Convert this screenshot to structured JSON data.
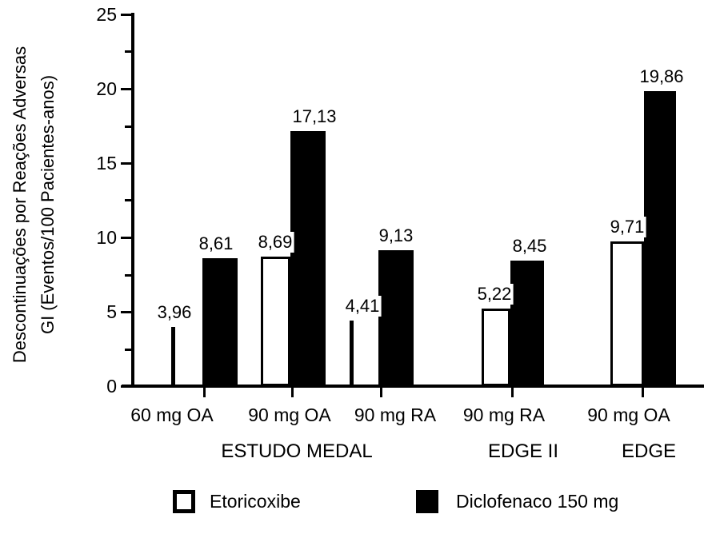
{
  "chart_data": {
    "type": "bar",
    "title": "",
    "ylabel_line1": "Descontinuações por Reações Adversas",
    "ylabel_line2": "GI (Eventos/100 Pacientes-anos)",
    "ylim": [
      0,
      25
    ],
    "yticks": [
      0,
      5,
      10,
      15,
      20,
      25
    ],
    "ytick_labels": [
      "0",
      "5",
      "10",
      "15",
      "20",
      "25"
    ],
    "minor_yticks": [
      2.5,
      7.5,
      12.5,
      17.5,
      22.5
    ],
    "grid": "off",
    "legend_position": "bottom",
    "categories": [
      "60 mg OA",
      "90 mg OA",
      "90 mg RA",
      "90 mg RA",
      "90 mg OA"
    ],
    "series": [
      {
        "name": "Etoricoxibe",
        "color": "#ffffff",
        "values": [
          3.96,
          8.69,
          4.41,
          5.22,
          9.71
        ],
        "value_labels": [
          "3,96",
          "8,69",
          "4,41",
          "5,22",
          "9,71"
        ]
      },
      {
        "name": "Diclofenaco 150 mg",
        "color": "#000000",
        "values": [
          8.61,
          17.13,
          9.13,
          8.45,
          19.86
        ],
        "value_labels": [
          "8,61",
          "17,13",
          "9,13",
          "8,45",
          "19,86"
        ]
      }
    ],
    "groups": [
      {
        "category": "60 mg OA",
        "study": "ESTUDO MEDAL",
        "etoricoxibe": 3.96,
        "diclofenaco": 8.61,
        "etoricoxibe_label": "3,96",
        "diclofenaco_label": "8,61"
      },
      {
        "category": "90 mg OA",
        "study": "ESTUDO MEDAL",
        "etoricoxibe": 8.69,
        "diclofenaco": 17.13,
        "etoricoxibe_label": "8,69",
        "diclofenaco_label": "17,13"
      },
      {
        "category": "90 mg RA",
        "study": "ESTUDO MEDAL",
        "etoricoxibe": 4.41,
        "diclofenaco": 9.13,
        "etoricoxibe_label": "4,41",
        "diclofenaco_label": "9,13"
      },
      {
        "category": "90 mg RA",
        "study": "EDGE II",
        "etoricoxibe": 5.22,
        "diclofenaco": 8.45,
        "etoricoxibe_label": "5,22",
        "diclofenaco_label": "8,45"
      },
      {
        "category": "90 mg OA",
        "study": "EDGE",
        "etoricoxibe": 9.71,
        "diclofenaco": 19.86,
        "etoricoxibe_label": "9,71",
        "diclofenaco_label": "19,86"
      }
    ],
    "study_labels": [
      "ESTUDO MEDAL",
      "EDGE II",
      "EDGE"
    ],
    "legend": [
      {
        "label": "Etoricoxibe",
        "color": "#ffffff"
      },
      {
        "label": "Diclofenaco 150 mg",
        "color": "#000000"
      }
    ],
    "colors": {
      "foreground": "#000000",
      "background": "#ffffff"
    }
  }
}
